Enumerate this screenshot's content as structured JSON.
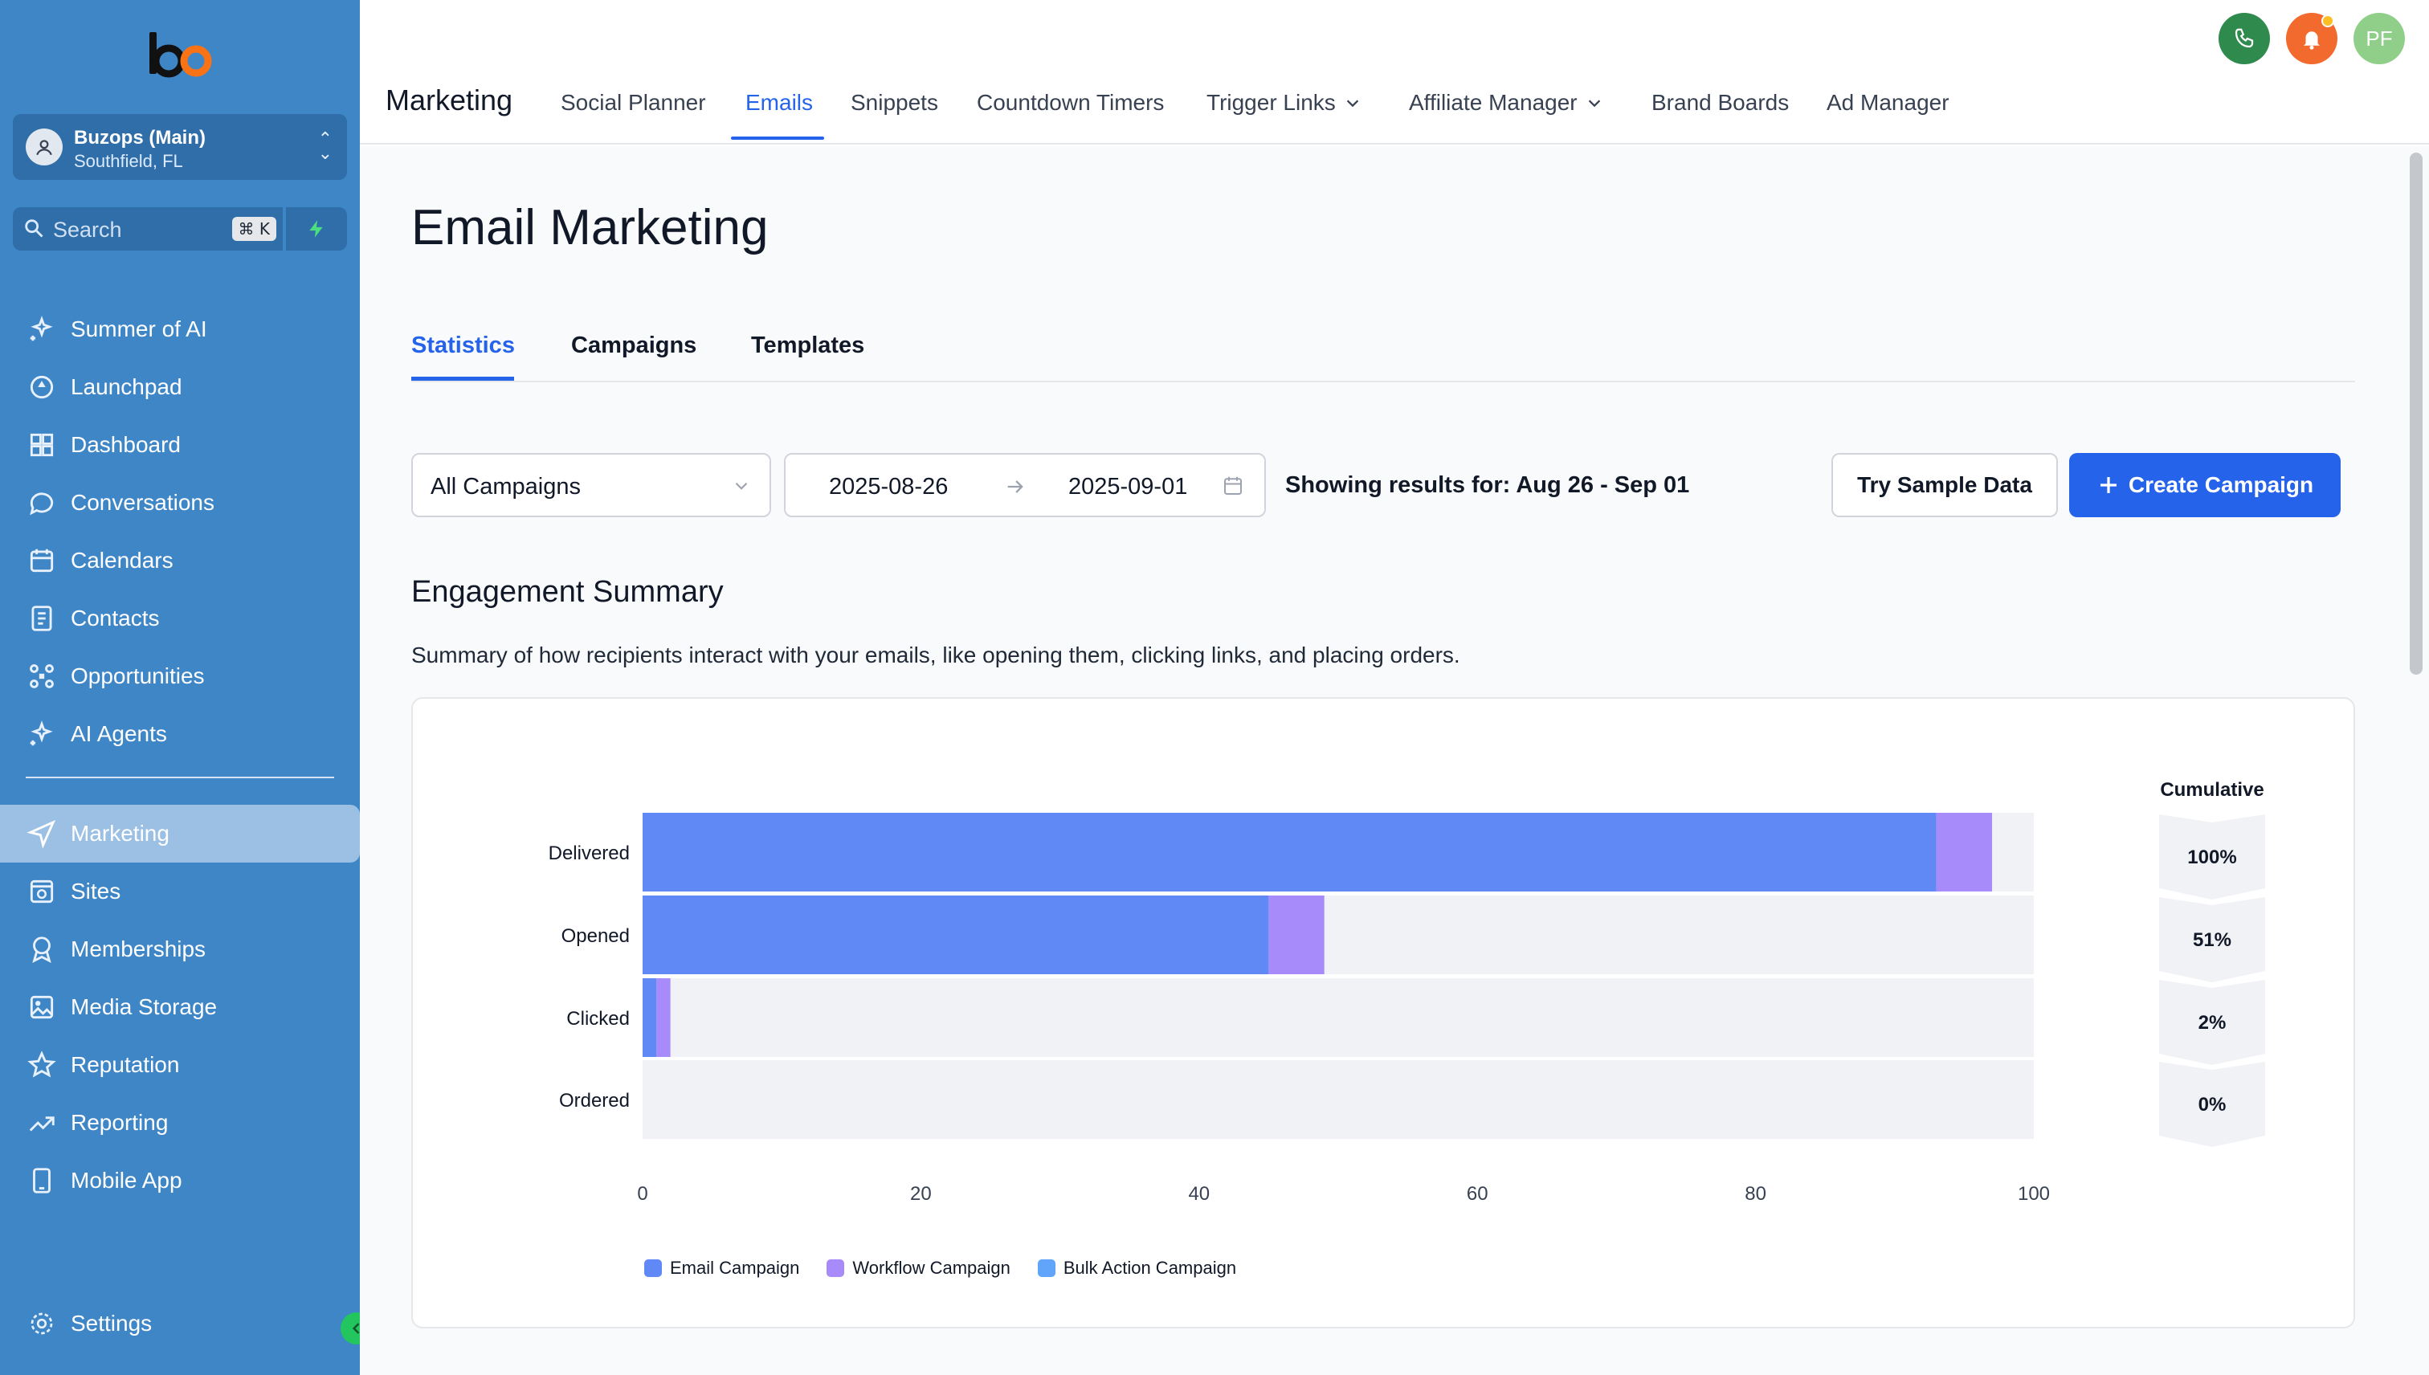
{
  "sidebar": {
    "account": {
      "name": "Buzops (Main)",
      "location": "Southfield, FL"
    },
    "search": {
      "placeholder": "Search",
      "shortcut": "⌘ K"
    },
    "items": [
      {
        "label": "Summer of AI",
        "icon": "sparkles-icon"
      },
      {
        "label": "Launchpad",
        "icon": "rocket-icon"
      },
      {
        "label": "Dashboard",
        "icon": "grid-icon"
      },
      {
        "label": "Conversations",
        "icon": "chat-icon"
      },
      {
        "label": "Calendars",
        "icon": "calendar-icon"
      },
      {
        "label": "Contacts",
        "icon": "contacts-icon"
      },
      {
        "label": "Opportunities",
        "icon": "pipeline-icon"
      },
      {
        "label": "AI Agents",
        "icon": "sparkles-icon"
      },
      {
        "label": "Marketing",
        "icon": "send-icon",
        "active": true
      },
      {
        "label": "Sites",
        "icon": "globe-icon"
      },
      {
        "label": "Memberships",
        "icon": "award-icon"
      },
      {
        "label": "Media Storage",
        "icon": "image-icon"
      },
      {
        "label": "Reputation",
        "icon": "star-icon"
      },
      {
        "label": "Reporting",
        "icon": "trend-icon"
      },
      {
        "label": "Mobile App",
        "icon": "phone-icon"
      }
    ],
    "settings_label": "Settings"
  },
  "header": {
    "title": "Marketing",
    "nav": [
      "Social Planner",
      "Emails",
      "Snippets",
      "Countdown Timers",
      "Trigger Links",
      "Affiliate Manager",
      "Brand Boards",
      "Ad Manager"
    ],
    "active_nav": "Emails",
    "user_initials": "PF"
  },
  "page": {
    "title": "Email Marketing",
    "tabs": [
      "Statistics",
      "Campaigns",
      "Templates"
    ],
    "active_tab": "Statistics",
    "filter": {
      "campaign": "All Campaigns",
      "start_date": "2025-08-26",
      "end_date": "2025-09-01",
      "showing": "Showing results for: Aug 26 - Sep 01"
    },
    "buttons": {
      "sample": "Try Sample Data",
      "create": "Create Campaign"
    },
    "section_title": "Engagement Summary",
    "section_desc": "Summary of how recipients interact with your emails, like opening them, clicking links, and placing orders.",
    "cumulative_title": "Cumulative"
  },
  "colors": {
    "email": "#6189f5",
    "workflow": "#a78bfa",
    "bulk": "#60a5fa",
    "accent": "#2563eb"
  },
  "chart_data": {
    "type": "bar",
    "orientation": "horizontal",
    "stacked": true,
    "categories": [
      "Delivered",
      "Opened",
      "Clicked",
      "Ordered"
    ],
    "series": [
      {
        "name": "Email Campaign",
        "values": [
          93,
          45,
          1,
          0
        ]
      },
      {
        "name": "Workflow Campaign",
        "values": [
          4,
          4,
          1,
          0
        ]
      },
      {
        "name": "Bulk Action Campaign",
        "values": [
          0,
          0,
          0,
          0
        ]
      }
    ],
    "xlim": [
      0,
      100
    ],
    "xticks": [
      0,
      20,
      40,
      60,
      80,
      100
    ],
    "cumulative": [
      "100%",
      "51%",
      "2%",
      "0%"
    ],
    "legend": "bottom-left"
  }
}
